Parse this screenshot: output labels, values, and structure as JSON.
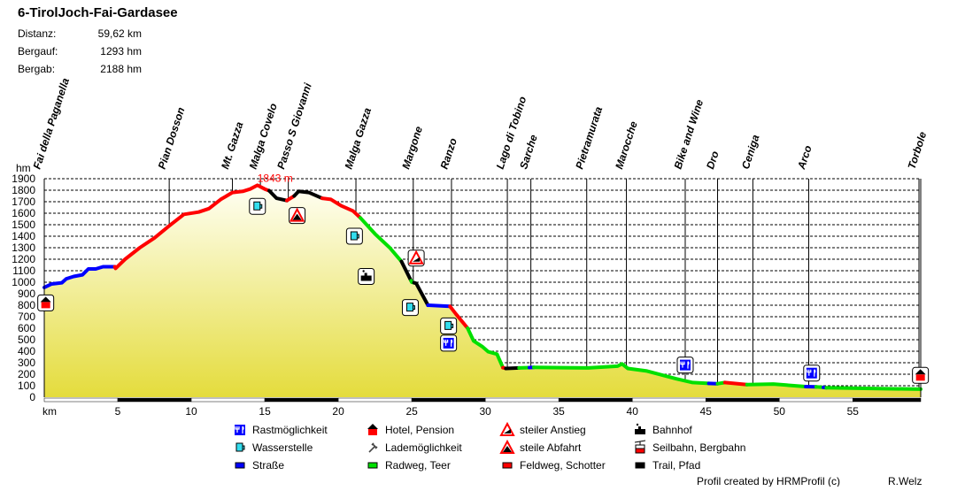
{
  "title": "6-TirolJoch-Fai-Gardasee",
  "stats": [
    {
      "label": "Distanz:",
      "value": "59,62 km"
    },
    {
      "label": "Bergauf:",
      "value": "1293 hm"
    },
    {
      "label": "Bergab:",
      "value": "2188 hm"
    }
  ],
  "colors": {
    "road": "#0000ff",
    "paved": "#00e000",
    "gravel": "#ff0000",
    "trail": "#000000",
    "fill_top": "#fffff4",
    "fill_bottom": "#e4dc3c",
    "max_label": "#ff0000"
  },
  "chart_data": {
    "type": "area",
    "xlabel": "km",
    "ylabel": "hm",
    "xlim": [
      0,
      59.62
    ],
    "ylim": [
      0,
      1900
    ],
    "xticks": [
      5,
      10,
      15,
      20,
      25,
      30,
      35,
      40,
      45,
      50,
      55
    ],
    "yticks": [
      0,
      100,
      200,
      300,
      400,
      500,
      600,
      700,
      800,
      900,
      1000,
      1100,
      1200,
      1300,
      1400,
      1500,
      1600,
      1700,
      1800,
      1900
    ],
    "grid": true,
    "max_label": "1843 m",
    "max_point": [
      14.5,
      1843
    ],
    "profile": [
      [
        0,
        955
      ],
      [
        0.5,
        985
      ],
      [
        1.2,
        995
      ],
      [
        1.5,
        1030
      ],
      [
        2.0,
        1050
      ],
      [
        2.6,
        1065
      ],
      [
        3.0,
        1115
      ],
      [
        3.5,
        1115
      ],
      [
        4.0,
        1135
      ],
      [
        4.8,
        1135
      ],
      [
        4.85,
        1120
      ],
      [
        5.5,
        1200
      ],
      [
        6.5,
        1300
      ],
      [
        7.5,
        1385
      ],
      [
        8.5,
        1490
      ],
      [
        9.5,
        1590
      ],
      [
        10.5,
        1610
      ],
      [
        11.2,
        1640
      ],
      [
        12.0,
        1720
      ],
      [
        12.8,
        1780
      ],
      [
        13.5,
        1790
      ],
      [
        14.0,
        1810
      ],
      [
        14.5,
        1843
      ],
      [
        15.0,
        1810
      ],
      [
        15.3,
        1795
      ],
      [
        15.8,
        1730
      ],
      [
        16.5,
        1710
      ],
      [
        17.0,
        1750
      ],
      [
        17.3,
        1790
      ],
      [
        18.0,
        1780
      ],
      [
        18.9,
        1730
      ],
      [
        19.5,
        1720
      ],
      [
        20.2,
        1665
      ],
      [
        21.0,
        1620
      ],
      [
        21.5,
        1560
      ],
      [
        22.5,
        1420
      ],
      [
        23.5,
        1300
      ],
      [
        24.3,
        1180
      ],
      [
        25.0,
        1000
      ],
      [
        25.3,
        990
      ],
      [
        26.1,
        800
      ],
      [
        27.6,
        790
      ],
      [
        28.0,
        725
      ],
      [
        28.8,
        600
      ],
      [
        29.2,
        490
      ],
      [
        29.8,
        440
      ],
      [
        30.2,
        395
      ],
      [
        30.8,
        375
      ],
      [
        31.2,
        257
      ],
      [
        31.4,
        250
      ],
      [
        32.3,
        255
      ],
      [
        33.0,
        258
      ],
      [
        33.3,
        260
      ],
      [
        37.0,
        255
      ],
      [
        39.0,
        270
      ],
      [
        39.3,
        290
      ],
      [
        39.7,
        250
      ],
      [
        41.0,
        228
      ],
      [
        43.0,
        160
      ],
      [
        44.1,
        128
      ],
      [
        45.2,
        120
      ],
      [
        45.8,
        118
      ],
      [
        46.3,
        128
      ],
      [
        47.8,
        110
      ],
      [
        49.6,
        115
      ],
      [
        51.8,
        92
      ],
      [
        52.5,
        90
      ],
      [
        53.0,
        85
      ],
      [
        53.2,
        82
      ],
      [
        55.8,
        77
      ],
      [
        59.62,
        70
      ]
    ],
    "surfaces": [
      {
        "from": 0,
        "to": 4.8,
        "type": "road"
      },
      {
        "from": 4.8,
        "to": 15.3,
        "type": "gravel"
      },
      {
        "from": 15.3,
        "to": 16.5,
        "type": "trail"
      },
      {
        "from": 16.5,
        "to": 17.0,
        "type": "gravel"
      },
      {
        "from": 17.0,
        "to": 18.9,
        "type": "trail"
      },
      {
        "from": 18.9,
        "to": 21.5,
        "type": "gravel"
      },
      {
        "from": 21.5,
        "to": 24.3,
        "type": "paved"
      },
      {
        "from": 24.3,
        "to": 24.95,
        "type": "trail"
      },
      {
        "from": 24.95,
        "to": 25.15,
        "type": "paved"
      },
      {
        "from": 25.15,
        "to": 26.1,
        "type": "trail"
      },
      {
        "from": 26.1,
        "to": 27.6,
        "type": "road"
      },
      {
        "from": 27.6,
        "to": 28.8,
        "type": "gravel"
      },
      {
        "from": 28.8,
        "to": 31.2,
        "type": "paved"
      },
      {
        "from": 31.2,
        "to": 31.4,
        "type": "gravel"
      },
      {
        "from": 31.4,
        "to": 32.3,
        "type": "trail"
      },
      {
        "from": 32.3,
        "to": 33.0,
        "type": "paved"
      },
      {
        "from": 33.0,
        "to": 33.3,
        "type": "road"
      },
      {
        "from": 33.3,
        "to": 45.2,
        "type": "paved"
      },
      {
        "from": 45.2,
        "to": 45.8,
        "type": "road"
      },
      {
        "from": 45.8,
        "to": 46.3,
        "type": "paved"
      },
      {
        "from": 46.3,
        "to": 47.8,
        "type": "gravel"
      },
      {
        "from": 47.8,
        "to": 51.8,
        "type": "paved"
      },
      {
        "from": 51.8,
        "to": 52.5,
        "type": "road"
      },
      {
        "from": 52.5,
        "to": 53.0,
        "type": "paved"
      },
      {
        "from": 53.0,
        "to": 53.2,
        "type": "road"
      },
      {
        "from": 53.2,
        "to": 59.62,
        "type": "paved"
      }
    ],
    "waypoints": [
      {
        "name": "Fai della Paganella",
        "km": 0
      },
      {
        "name": "Pian Dosson",
        "km": 8.5
      },
      {
        "name": "Mt. Gazza",
        "km": 12.8
      },
      {
        "name": "Malga Covelo",
        "km": 14.7
      },
      {
        "name": "Passo S Giovanni",
        "km": 16.6
      },
      {
        "name": "Malga Gazza",
        "km": 21.2
      },
      {
        "name": "Margone",
        "km": 25.1
      },
      {
        "name": "Ranzo",
        "km": 27.7
      },
      {
        "name": "Lago di Tobino",
        "km": 31.5
      },
      {
        "name": "Sarche",
        "km": 33.1
      },
      {
        "name": "Pietramurata",
        "km": 36.9
      },
      {
        "name": "Marocche",
        "km": 39.6
      },
      {
        "name": "Bike and Wine",
        "km": 43.6
      },
      {
        "name": "Dro",
        "km": 45.8
      },
      {
        "name": "Ceniga",
        "km": 48.2
      },
      {
        "name": "Arco",
        "km": 52.0
      },
      {
        "name": "Torbole",
        "km": 59.5
      }
    ],
    "markers": [
      {
        "type": "hotel",
        "km": 0.1,
        "hm": 820
      },
      {
        "type": "water",
        "km": 14.5,
        "hm": 1660
      },
      {
        "type": "steep-descent",
        "km": 17.2,
        "hm": 1580
      },
      {
        "type": "water",
        "km": 21.1,
        "hm": 1400
      },
      {
        "type": "train",
        "km": 21.9,
        "hm": 1050
      },
      {
        "type": "steep-climb",
        "km": 25.3,
        "hm": 1210
      },
      {
        "type": "water",
        "km": 24.9,
        "hm": 780
      },
      {
        "type": "water",
        "km": 27.5,
        "hm": 620
      },
      {
        "type": "rest",
        "km": 27.5,
        "hm": 470
      },
      {
        "type": "rest",
        "km": 43.6,
        "hm": 280
      },
      {
        "type": "rest",
        "km": 52.2,
        "hm": 210
      },
      {
        "type": "hotel",
        "km": 59.6,
        "hm": 190
      }
    ]
  },
  "legend": [
    {
      "type": "rest",
      "label": "Rastmöglichkeit"
    },
    {
      "type": "hotel",
      "label": "Hotel, Pension"
    },
    {
      "type": "steep-climb",
      "label": "steiler Anstieg"
    },
    {
      "type": "train",
      "label": "Bahnhof"
    },
    {
      "type": "water",
      "label": "Wasserstelle"
    },
    {
      "type": "charging",
      "label": "Lademöglichkeit"
    },
    {
      "type": "steep-descent",
      "label": "steile Abfahrt"
    },
    {
      "type": "cablecar",
      "label": "Seilbahn, Bergbahn"
    },
    {
      "type": "road",
      "label": "Straße"
    },
    {
      "type": "paved",
      "label": "Radweg, Teer"
    },
    {
      "type": "gravel",
      "label": "Feldweg, Schotter"
    },
    {
      "type": "trail",
      "label": "Trail, Pfad"
    }
  ],
  "footer": {
    "credit": "Profil created by HRMProfil (c)",
    "author": "R.Welz"
  }
}
